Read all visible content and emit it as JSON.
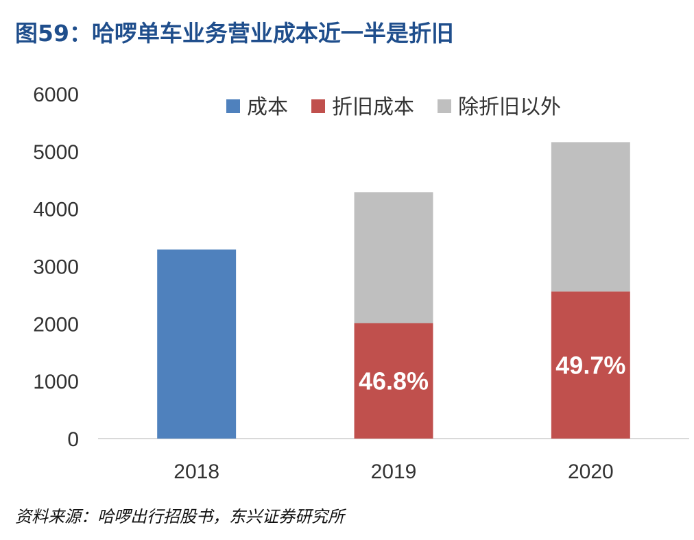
{
  "title": "图59：哈啰单车业务营业成本近一半是折旧",
  "source": "资料来源：哈啰出行招股书，东兴证券研究所",
  "chart_data": {
    "type": "bar",
    "stacked": true,
    "categories": [
      "2018",
      "2019",
      "2020"
    ],
    "ylim": [
      0,
      6000
    ],
    "yticks": [
      0,
      1000,
      2000,
      3000,
      4000,
      5000,
      6000
    ],
    "grid": false,
    "legend_position": "top",
    "series": [
      {
        "name": "成本",
        "color": "#4f81bd",
        "values": [
          3290,
          null,
          null
        ],
        "labels": [
          null,
          null,
          null
        ]
      },
      {
        "name": "折旧成本",
        "color": "#c0504d",
        "values": [
          null,
          2010,
          2560
        ],
        "labels": [
          null,
          "46.8%",
          "49.7%"
        ]
      },
      {
        "name": "除折旧以外",
        "color": "#bfbfbf",
        "values": [
          null,
          2280,
          2600
        ],
        "labels": [
          null,
          null,
          null
        ]
      }
    ]
  }
}
